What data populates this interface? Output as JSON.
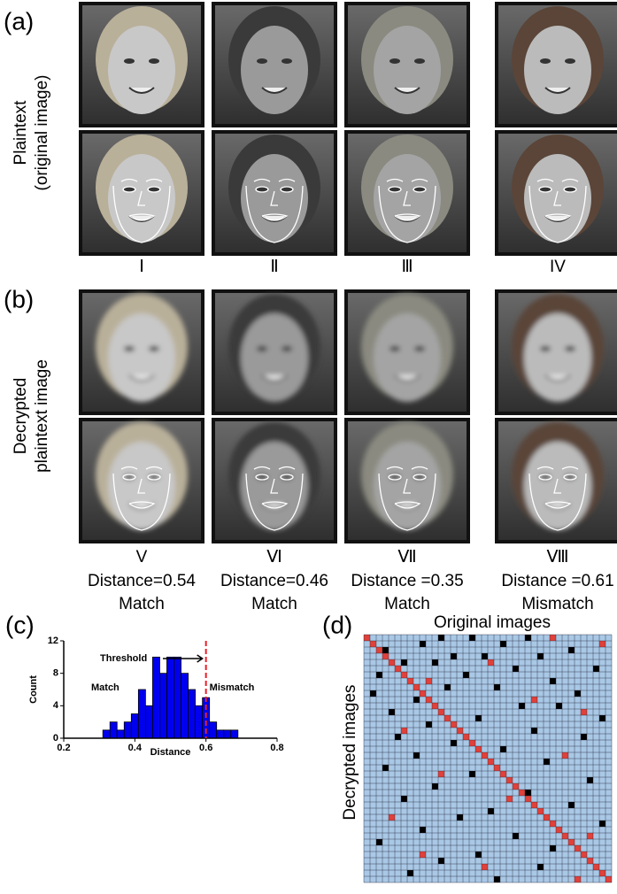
{
  "panel_a": {
    "label": "(a)",
    "side_label_lines": [
      "Plaintext",
      "(original image)"
    ],
    "numerals": [
      "Ⅰ",
      "Ⅱ",
      "Ⅲ",
      "IV"
    ]
  },
  "panel_b": {
    "label": "(b)",
    "side_label_lines": [
      "Decrypted",
      "plaintext image"
    ],
    "results": [
      {
        "numeral": "V",
        "distance": "Distance=0.54",
        "verdict": "Match"
      },
      {
        "numeral": "Ⅵ",
        "distance": "Distance=0.46",
        "verdict": "Match"
      },
      {
        "numeral": "Ⅶ",
        "distance": "Distance =0.35",
        "verdict": "Match"
      },
      {
        "numeral": "Ⅷ",
        "distance": "Distance =0.61",
        "verdict": "Mismatch"
      }
    ]
  },
  "panel_c": {
    "label": "(c)"
  },
  "chart_data": {
    "type": "histogram",
    "xlabel": "Distance",
    "ylabel": "Count",
    "bins": [
      0.31,
      0.33,
      0.35,
      0.37,
      0.39,
      0.41,
      0.43,
      0.45,
      0.47,
      0.49,
      0.51,
      0.53,
      0.55,
      0.57,
      0.59,
      0.61,
      0.63,
      0.65,
      0.67,
      0.69
    ],
    "values": [
      1,
      2,
      1,
      2,
      3,
      6,
      4,
      10,
      8,
      10,
      10,
      8,
      6,
      4,
      5,
      2,
      1,
      1,
      1
    ],
    "color": "#0000ee",
    "xlim": [
      0.2,
      0.8
    ],
    "ylim": [
      0,
      12
    ],
    "xticks": [
      0.2,
      0.4,
      0.6,
      0.8
    ],
    "yticks": [
      0,
      4,
      8,
      12
    ],
    "threshold": 0.6,
    "threshold_color": "#e8202a",
    "annotations": {
      "threshold": "Threshold",
      "left": "Match",
      "right": "Mismatch"
    }
  },
  "panel_d": {
    "label": "(d)",
    "x_title": "Original images",
    "y_title": "Decrypted images",
    "grid_size": 40,
    "cell_color": "#a9c8e6",
    "black_color": "#000000",
    "red_color": "#e0413a",
    "black_cells": [
      [
        0,
        12
      ],
      [
        0,
        17
      ],
      [
        0,
        26
      ],
      [
        1,
        9
      ],
      [
        1,
        22
      ],
      [
        2,
        3
      ],
      [
        2,
        33
      ],
      [
        3,
        14
      ],
      [
        3,
        19
      ],
      [
        3,
        28
      ],
      [
        4,
        6
      ],
      [
        4,
        11
      ],
      [
        5,
        24
      ],
      [
        5,
        37
      ],
      [
        6,
        2
      ],
      [
        6,
        16
      ],
      [
        7,
        30
      ],
      [
        8,
        13
      ],
      [
        8,
        21
      ],
      [
        9,
        1
      ],
      [
        9,
        34
      ],
      [
        10,
        8
      ],
      [
        11,
        25
      ],
      [
        11,
        31
      ],
      [
        12,
        4
      ],
      [
        13,
        18
      ],
      [
        13,
        38
      ],
      [
        14,
        10
      ],
      [
        15,
        27
      ],
      [
        16,
        5
      ],
      [
        16,
        35
      ],
      [
        17,
        14
      ],
      [
        18,
        22
      ],
      [
        19,
        8
      ],
      [
        20,
        29
      ],
      [
        21,
        3
      ],
      [
        22,
        17
      ],
      [
        23,
        36
      ],
      [
        24,
        11
      ],
      [
        25,
        26
      ],
      [
        26,
        6
      ],
      [
        27,
        33
      ],
      [
        28,
        20
      ],
      [
        29,
        15
      ],
      [
        30,
        38
      ],
      [
        31,
        9
      ],
      [
        32,
        24
      ],
      [
        33,
        2
      ],
      [
        34,
        30
      ],
      [
        35,
        18
      ],
      [
        36,
        12
      ],
      [
        37,
        28
      ],
      [
        38,
        7
      ],
      [
        39,
        21
      ]
    ],
    "red_cells": [
      [
        0,
        30
      ],
      [
        1,
        38
      ],
      [
        4,
        20
      ],
      [
        7,
        10
      ],
      [
        10,
        27
      ],
      [
        12,
        35
      ],
      [
        15,
        6
      ],
      [
        19,
        32
      ],
      [
        22,
        12
      ],
      [
        26,
        23
      ],
      [
        29,
        4
      ],
      [
        32,
        36
      ],
      [
        35,
        9
      ],
      [
        37,
        19
      ],
      [
        39,
        34
      ]
    ]
  }
}
